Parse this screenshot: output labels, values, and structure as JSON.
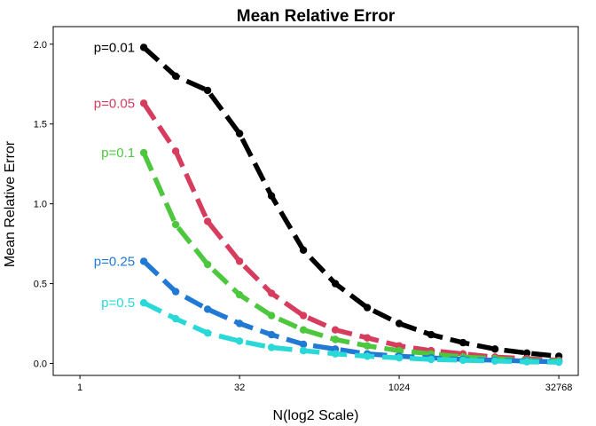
{
  "chart_data": {
    "type": "line",
    "title": "Mean Relative Error",
    "xlabel": "N(log2 Scale)",
    "ylabel": "Mean Relative Error",
    "x_scale": "log2",
    "xlim": [
      1,
      32768
    ],
    "ylim": [
      0,
      2.0
    ],
    "x_ticks": [
      1,
      32,
      1024,
      32768
    ],
    "x_tick_labels": [
      "1",
      "32",
      "1024",
      "32768"
    ],
    "y_ticks": [
      0,
      0.5,
      1.0,
      1.5,
      2.0
    ],
    "y_tick_labels": [
      "0.0",
      "0.5",
      "1.0",
      "1.5",
      "2.0"
    ],
    "grid": false,
    "x": [
      4,
      8,
      16,
      32,
      64,
      128,
      256,
      512,
      1024,
      2048,
      4096,
      8192,
      16384,
      32768
    ],
    "series": [
      {
        "name": "p=0.01",
        "color": "#000000",
        "values": [
          1.98,
          1.8,
          1.71,
          1.44,
          1.05,
          0.71,
          0.5,
          0.35,
          0.25,
          0.18,
          0.13,
          0.09,
          0.065,
          0.045
        ]
      },
      {
        "name": "p=0.05",
        "color": "#d63c5e",
        "values": [
          1.63,
          1.33,
          0.89,
          0.64,
          0.44,
          0.3,
          0.21,
          0.16,
          0.11,
          0.08,
          0.06,
          0.04,
          0.03,
          0.02
        ]
      },
      {
        "name": "p=0.1",
        "color": "#4dc73e",
        "values": [
          1.32,
          0.87,
          0.62,
          0.43,
          0.3,
          0.21,
          0.15,
          0.11,
          0.08,
          0.06,
          0.04,
          0.03,
          0.02,
          0.015
        ]
      },
      {
        "name": "p=0.25",
        "color": "#2279d4",
        "values": [
          0.64,
          0.45,
          0.34,
          0.25,
          0.18,
          0.12,
          0.09,
          0.06,
          0.045,
          0.035,
          0.025,
          0.02,
          0.015,
          0.01
        ]
      },
      {
        "name": "p=0.5",
        "color": "#2ad8d8",
        "values": [
          0.38,
          0.28,
          0.19,
          0.14,
          0.1,
          0.08,
          0.06,
          0.045,
          0.035,
          0.025,
          0.02,
          0.015,
          0.01,
          0.008
        ]
      }
    ]
  }
}
